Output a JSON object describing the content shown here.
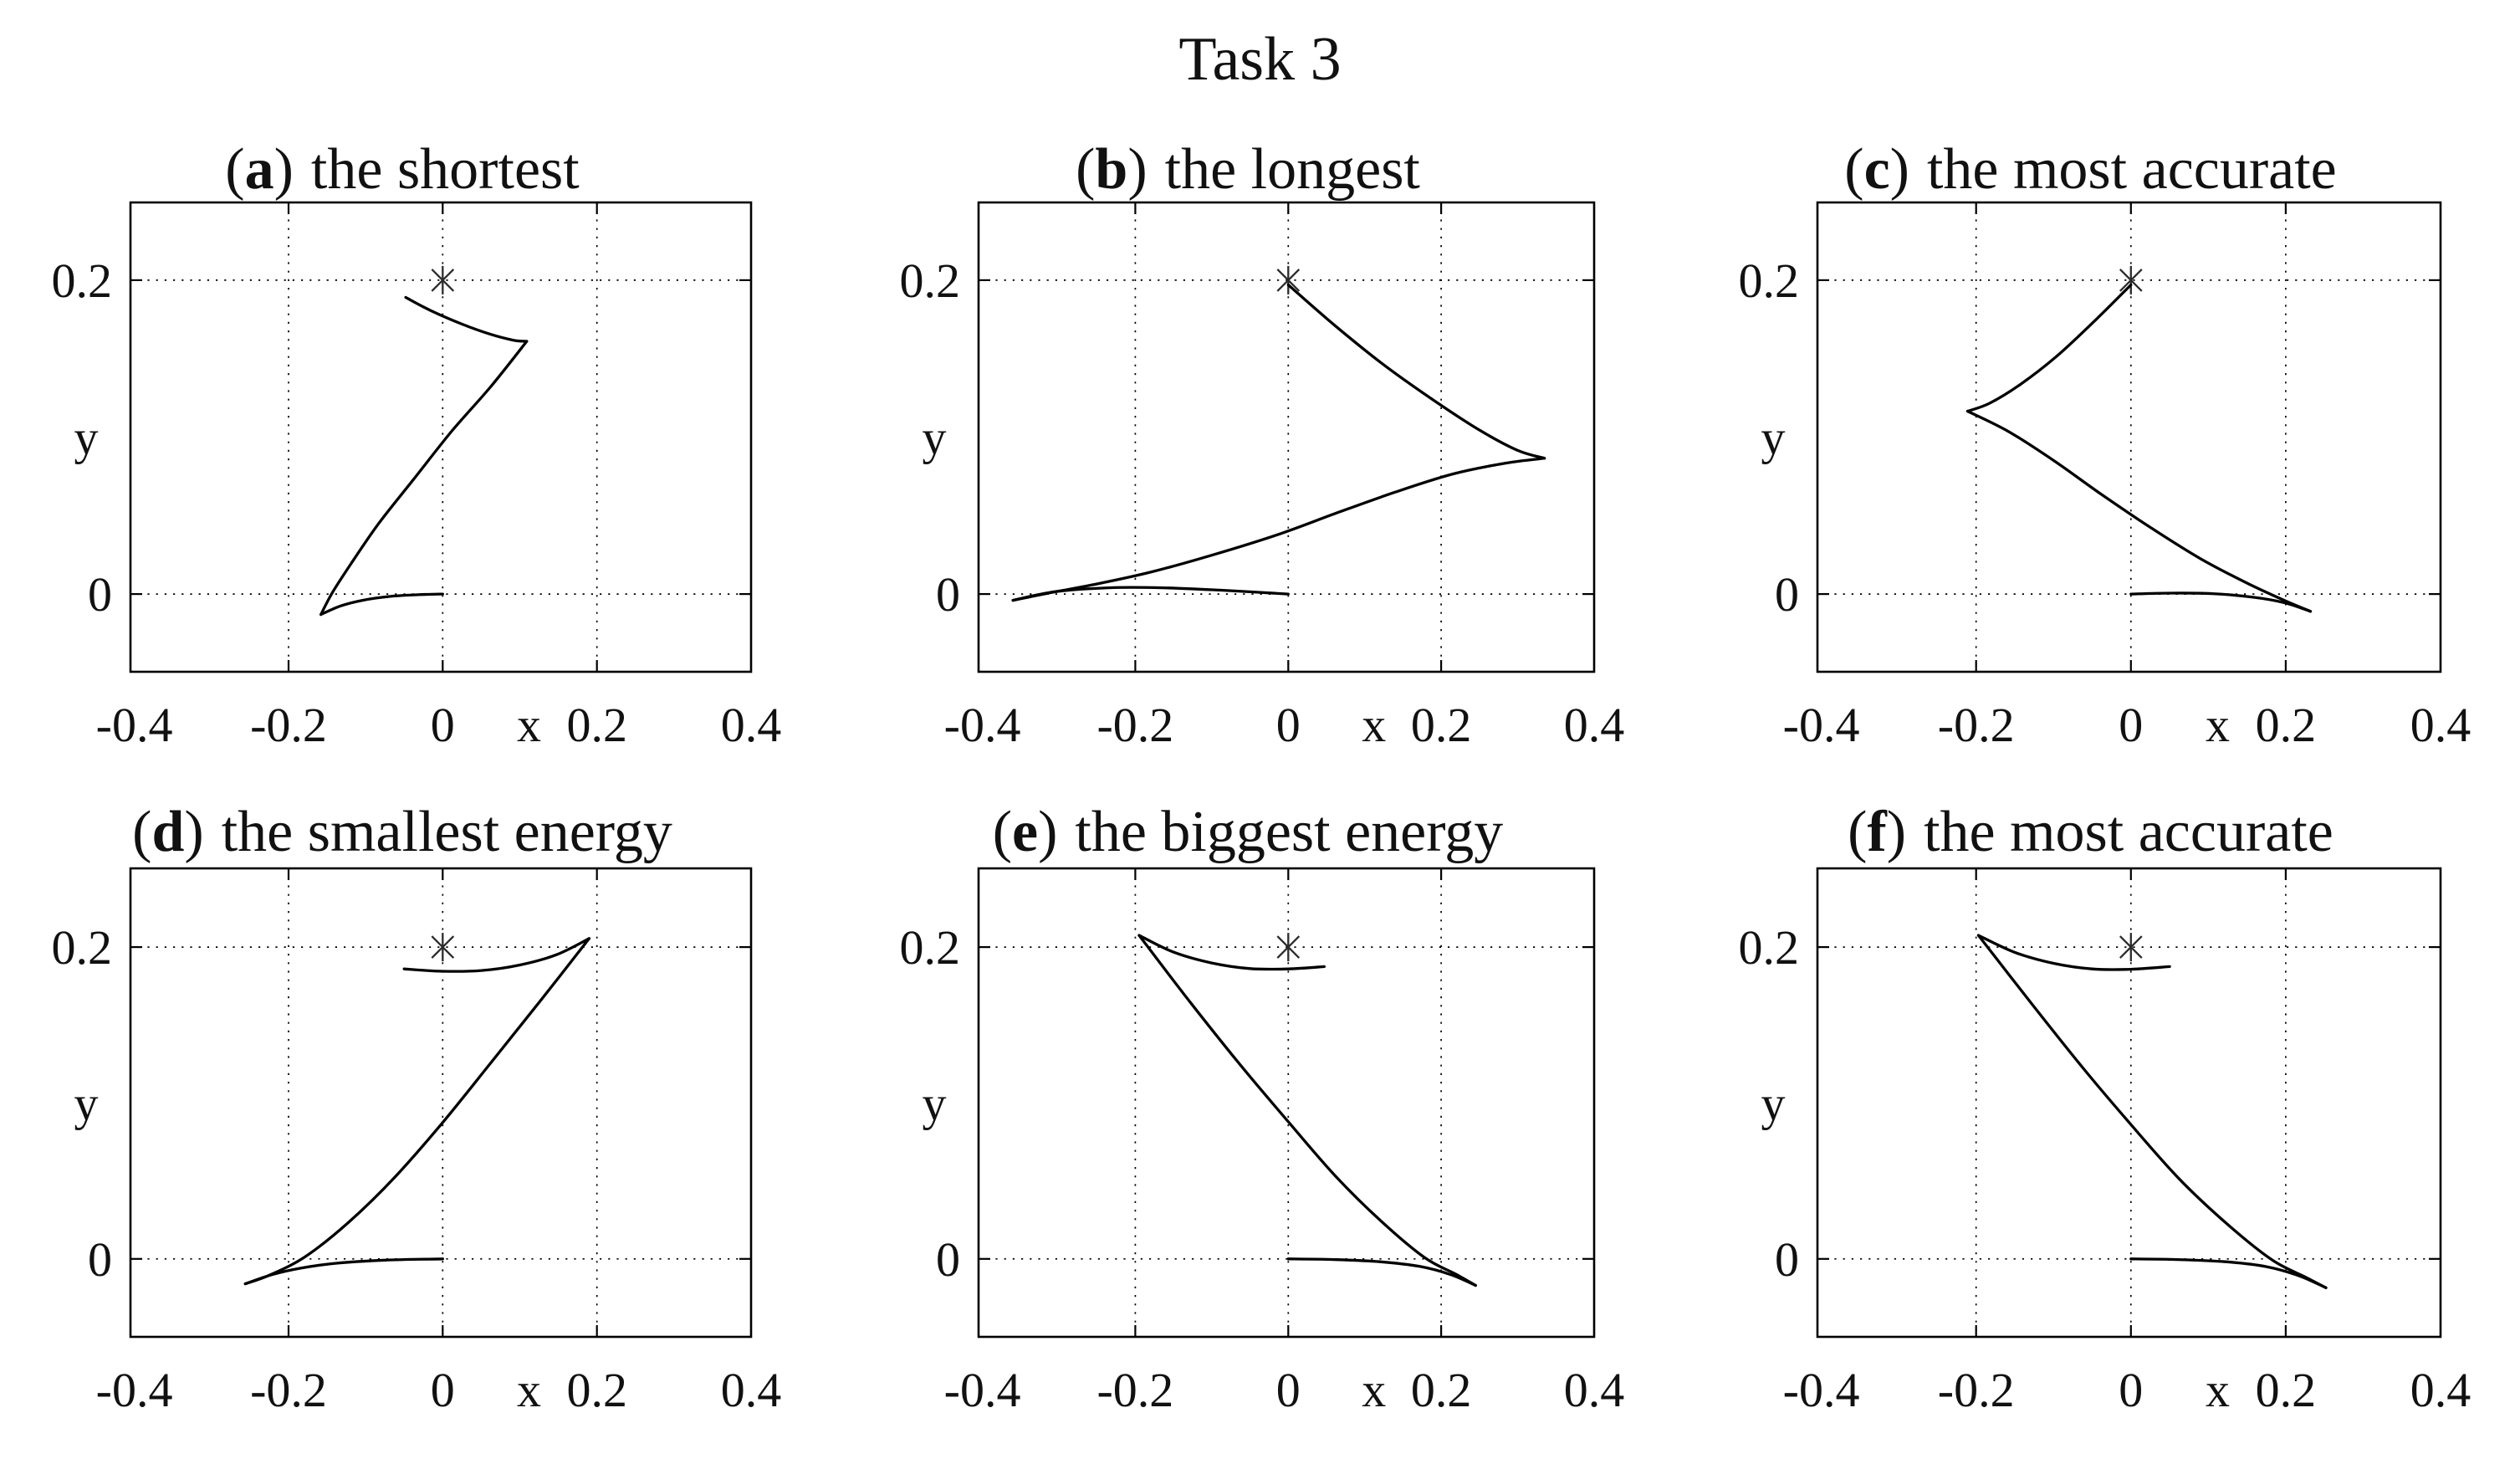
{
  "figure": {
    "background": "#ffffff",
    "line_color": "#000000",
    "marker_color": "#2b2b2b"
  },
  "punct": {
    "open": "(",
    "close": ")"
  },
  "chart_data": {
    "type": "line",
    "figure_title": "Task 3",
    "layout": "2 rows x 3 columns of subplots",
    "xlabel": "x",
    "ylabel": "y",
    "xlim": [
      -0.405,
      0.4
    ],
    "ylim": [
      -0.05,
      0.25
    ],
    "xticks": [
      -0.4,
      -0.2,
      0,
      0.2,
      0.4
    ],
    "xtick_labels": [
      "-0.4",
      "-0.2",
      "0",
      "0.2",
      "0.4"
    ],
    "yticks": [
      0,
      0.2
    ],
    "ytick_labels": [
      "0",
      "0.2"
    ],
    "grid_x": [
      -0.2,
      0,
      0.2
    ],
    "grid_y": [
      0,
      0.2
    ],
    "grid": true,
    "legend": "none",
    "target_marker": {
      "x": 0,
      "y": 0.2,
      "style": "asterisk"
    },
    "subplots": [
      {
        "id": "a",
        "title": "the shortest",
        "segments": [
          [
            [
              -0.048,
              0.189
            ],
            [
              -0.015,
              0.1805
            ],
            [
              0.025,
              0.172
            ],
            [
              0.062,
              0.1655
            ],
            [
              0.092,
              0.1617
            ],
            [
              0.109,
              0.161
            ]
          ],
          [
            [
              0.109,
              0.161
            ],
            [
              0.062,
              0.132
            ],
            [
              0.012,
              0.104
            ],
            [
              -0.038,
              0.073
            ],
            [
              -0.083,
              0.045
            ],
            [
              -0.118,
              0.02
            ],
            [
              -0.143,
              0.001
            ],
            [
              -0.158,
              -0.013
            ]
          ],
          [
            [
              -0.158,
              -0.013
            ],
            [
              -0.132,
              -0.0075
            ],
            [
              -0.104,
              -0.004
            ],
            [
              -0.068,
              -0.0015
            ],
            [
              -0.032,
              -0.0004
            ],
            [
              0.0,
              0.0
            ]
          ]
        ]
      },
      {
        "id": "b",
        "title": "the longest",
        "segments": [
          [
            [
              0.0,
              0.197
            ],
            [
              0.06,
              0.1715
            ],
            [
              0.125,
              0.146
            ],
            [
              0.19,
              0.1235
            ],
            [
              0.25,
              0.1045
            ],
            [
              0.3,
              0.0915
            ],
            [
              0.335,
              0.0865
            ]
          ],
          [
            [
              0.335,
              0.0865
            ],
            [
              0.285,
              0.0835
            ],
            [
              0.215,
              0.0765
            ],
            [
              0.14,
              0.065
            ],
            [
              0.065,
              0.052
            ],
            [
              -0.01,
              0.0385
            ],
            [
              -0.095,
              0.0255
            ],
            [
              -0.18,
              0.014
            ],
            [
              -0.255,
              0.006
            ],
            [
              -0.315,
              0.0005
            ],
            [
              -0.36,
              -0.004
            ]
          ],
          [
            [
              -0.36,
              -0.004
            ],
            [
              -0.305,
              0.0015
            ],
            [
              -0.235,
              0.004
            ],
            [
              -0.165,
              0.004
            ],
            [
              -0.09,
              0.0025
            ],
            [
              0.0,
              0.0
            ]
          ]
        ]
      },
      {
        "id": "c",
        "title": "the most accurate",
        "segments": [
          [
            [
              0.0,
              0.197
            ],
            [
              -0.048,
              0.1735
            ],
            [
              -0.096,
              0.1515
            ],
            [
              -0.143,
              0.1335
            ],
            [
              -0.183,
              0.1215
            ],
            [
              -0.211,
              0.1165
            ]
          ],
          [
            [
              -0.211,
              0.1165
            ],
            [
              -0.158,
              0.1035
            ],
            [
              -0.098,
              0.0845
            ],
            [
              -0.038,
              0.0635
            ],
            [
              0.025,
              0.0425
            ],
            [
              0.09,
              0.0225
            ],
            [
              0.15,
              0.007
            ],
            [
              0.198,
              -0.004
            ],
            [
              0.232,
              -0.011
            ]
          ],
          [
            [
              0.232,
              -0.011
            ],
            [
              0.198,
              -0.0055
            ],
            [
              0.158,
              -0.002
            ],
            [
              0.105,
              0.0003
            ],
            [
              0.05,
              0.0006
            ],
            [
              0.0,
              0.0
            ]
          ]
        ]
      },
      {
        "id": "d",
        "title": "the smallest energy",
        "segments": [
          [
            [
              -0.05,
              0.186
            ],
            [
              0.0,
              0.1845
            ],
            [
              0.05,
              0.185
            ],
            [
              0.1,
              0.1885
            ],
            [
              0.148,
              0.1952
            ],
            [
              0.19,
              0.2055
            ]
          ],
          [
            [
              0.19,
              0.2055
            ],
            [
              0.125,
              0.1645
            ],
            [
              0.062,
              0.1255
            ],
            [
              0.0,
              0.0875
            ],
            [
              -0.062,
              0.0525
            ],
            [
              -0.122,
              0.0235
            ],
            [
              -0.178,
              0.0015
            ],
            [
              -0.225,
              -0.0105
            ],
            [
              -0.256,
              -0.016
            ]
          ],
          [
            [
              -0.256,
              -0.016
            ],
            [
              -0.222,
              -0.0102
            ],
            [
              -0.185,
              -0.006
            ],
            [
              -0.138,
              -0.0028
            ],
            [
              -0.075,
              -0.0008
            ],
            [
              0.0,
              0.0
            ]
          ]
        ]
      },
      {
        "id": "e",
        "title": "the biggest energy",
        "segments": [
          [
            [
              0.047,
              0.1875
            ],
            [
              0.0,
              0.186
            ],
            [
              -0.05,
              0.1862
            ],
            [
              -0.1,
              0.1898
            ],
            [
              -0.15,
              0.1968
            ],
            [
              -0.195,
              0.2075
            ]
          ],
          [
            [
              -0.195,
              0.2075
            ],
            [
              -0.128,
              0.1645
            ],
            [
              -0.062,
              0.124
            ],
            [
              0.0,
              0.088
            ],
            [
              0.062,
              0.053
            ],
            [
              0.122,
              0.024
            ],
            [
              0.178,
              0.001
            ],
            [
              0.22,
              -0.01
            ],
            [
              0.245,
              -0.017
            ]
          ],
          [
            [
              0.245,
              -0.017
            ],
            [
              0.212,
              -0.01
            ],
            [
              0.172,
              -0.0048
            ],
            [
              0.12,
              -0.0018
            ],
            [
              0.06,
              -0.0004
            ],
            [
              0.0,
              0.0
            ]
          ]
        ]
      },
      {
        "id": "f",
        "title": "the most accurate",
        "segments": [
          [
            [
              0.05,
              0.1875
            ],
            [
              0.0,
              0.1858
            ],
            [
              -0.05,
              0.186
            ],
            [
              -0.1,
              0.1896
            ],
            [
              -0.15,
              0.1966
            ],
            [
              -0.197,
              0.2075
            ]
          ],
          [
            [
              -0.197,
              0.2075
            ],
            [
              -0.128,
              0.1635
            ],
            [
              -0.062,
              0.1225
            ],
            [
              0.0,
              0.0862
            ],
            [
              0.062,
              0.0515
            ],
            [
              0.124,
              0.0225
            ],
            [
              0.182,
              -0.0005
            ],
            [
              0.226,
              -0.0118
            ],
            [
              0.252,
              -0.0185
            ]
          ],
          [
            [
              0.252,
              -0.0185
            ],
            [
              0.217,
              -0.0108
            ],
            [
              0.175,
              -0.005
            ],
            [
              0.122,
              -0.0018
            ],
            [
              0.06,
              -0.0004
            ],
            [
              0.0,
              0.0
            ]
          ]
        ]
      }
    ]
  }
}
